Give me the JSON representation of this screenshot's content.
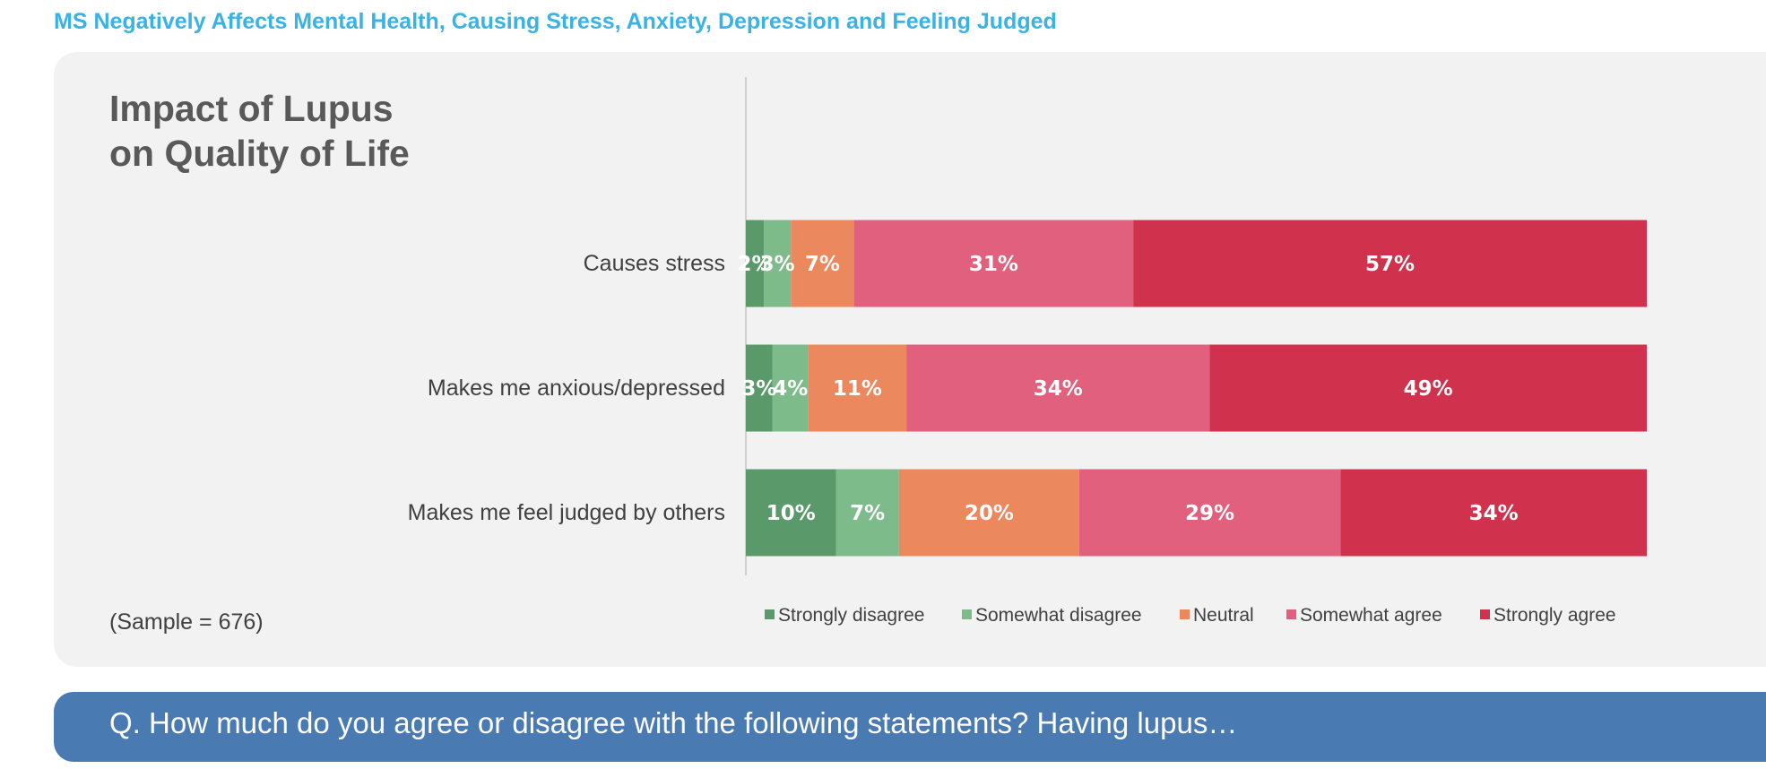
{
  "headline": "MS Negatively Affects Mental Health, Causing Stress, Anxiety, Depression and Feeling Judged",
  "sample_note": "(Sample = 676)",
  "question": "Q. How much do you agree or disagree with the following statements? Having lupus…",
  "chart_data": {
    "type": "bar",
    "orientation": "horizontal",
    "stacked": true,
    "title": "Impact of Lupus on Quality of Life",
    "categories": [
      "Causes stress",
      "Makes me anxious/depressed",
      "Makes me feel judged by others"
    ],
    "series": [
      {
        "name": "Strongly disagree",
        "color": "#5a9a6a",
        "values": [
          2,
          3,
          10
        ]
      },
      {
        "name": "Somewhat disagree",
        "color": "#7dbb8a",
        "values": [
          3,
          4,
          7
        ]
      },
      {
        "name": "Neutral",
        "color": "#ec885e",
        "values": [
          7,
          11,
          20
        ]
      },
      {
        "name": "Somewhat agree",
        "color": "#e0607e",
        "values": [
          31,
          34,
          29
        ]
      },
      {
        "name": "Strongly agree",
        "color": "#d0324d",
        "values": [
          57,
          49,
          34
        ]
      }
    ],
    "value_suffix": "%",
    "legend_position": "bottom",
    "grid": false
  }
}
